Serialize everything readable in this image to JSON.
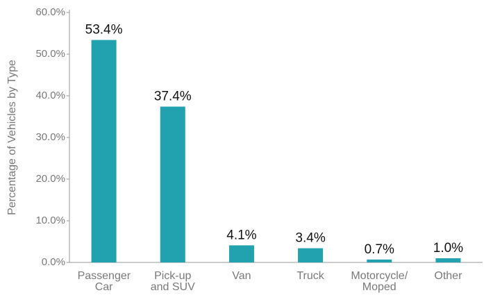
{
  "chart_data": {
    "type": "bar",
    "y_label": "Percentage of Vehicles by Type",
    "categories": [
      "Passenger Car",
      "Pick-up and SUV",
      "Van",
      "Truck",
      "Motorcycle/ Moped",
      "Other"
    ],
    "values": [
      53.4,
      37.4,
      4.1,
      3.4,
      0.7,
      1.0
    ],
    "value_labels": [
      "53.4%",
      "37.4%",
      "4.1%",
      "3.4%",
      "0.7%",
      "1.0%"
    ],
    "color": "#22a1ae",
    "ylim": [
      0,
      60
    ],
    "yticks": [
      {
        "value": 0,
        "label": "0.0%"
      },
      {
        "value": 10,
        "label": "10.0%"
      },
      {
        "value": 20,
        "label": "20.0%"
      },
      {
        "value": 30,
        "label": "30.0%"
      },
      {
        "value": 40,
        "label": "40.0%"
      },
      {
        "value": 50,
        "label": "50.0%"
      },
      {
        "value": 60,
        "label": "60.0%"
      }
    ]
  }
}
